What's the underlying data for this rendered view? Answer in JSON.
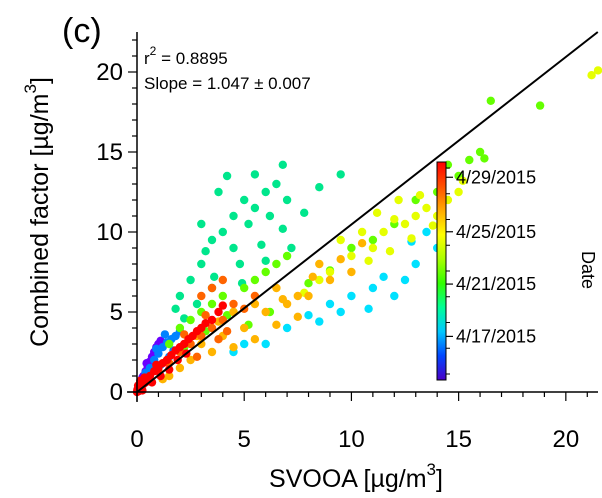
{
  "chart_data": {
    "type": "scatter",
    "panel_label": "(c)",
    "xlabel": "SVOOA [µg/m",
    "xlabel_sup": "3",
    "xlabel_end": "]",
    "ylabel": "Combined factor [µg/m",
    "ylabel_sup": "3",
    "ylabel_end": "]",
    "xlim": [
      0,
      21.5
    ],
    "ylim": [
      0,
      22.5
    ],
    "x_ticks": [
      0,
      5,
      10,
      15,
      20
    ],
    "y_ticks": [
      0,
      5,
      10,
      15,
      20
    ],
    "annotations": {
      "r2_label": "r",
      "r2_sup": "2",
      "r2_value": " = 0.8895",
      "slope_text": "Slope = 1.047 ± 0.007"
    },
    "fit_line": {
      "slope": 1.047,
      "intercept": 0
    },
    "colorbar": {
      "title": "Date",
      "tick_labels": [
        "4/29/2015",
        "4/25/2015",
        "4/21/2015",
        "4/17/2015"
      ],
      "tick_fracs": [
        0.07,
        0.32,
        0.56,
        0.8
      ],
      "colors_bottom_to_top": [
        "#4b00c8",
        "#0046ff",
        "#00c8ff",
        "#00ff96",
        "#32ff00",
        "#aaff00",
        "#ffff00",
        "#ffaa00",
        "#ff5000",
        "#ff0000"
      ]
    },
    "series": [
      {
        "color": "#6a00ff",
        "points": [
          [
            0.1,
            0.3
          ],
          [
            0.2,
            0.6
          ],
          [
            0.3,
            1.0
          ],
          [
            0.4,
            1.3
          ],
          [
            0.5,
            1.6
          ],
          [
            0.6,
            1.9
          ],
          [
            0.7,
            2.2
          ],
          [
            0.8,
            2.5
          ],
          [
            0.9,
            2.8
          ],
          [
            1.0,
            3.0
          ],
          [
            1.1,
            3.2
          ],
          [
            0.3,
            0.5
          ],
          [
            0.5,
            1.0
          ],
          [
            0.7,
            1.4
          ],
          [
            0.15,
            0.2
          ],
          [
            0.25,
            0.9
          ],
          [
            0.45,
            1.8
          ]
        ]
      },
      {
        "color": "#0082ff",
        "points": [
          [
            0.2,
            0.5
          ],
          [
            0.4,
            1.2
          ],
          [
            0.6,
            1.5
          ],
          [
            0.8,
            2.0
          ],
          [
            1.0,
            2.4
          ],
          [
            1.2,
            2.8
          ],
          [
            1.4,
            3.1
          ],
          [
            1.6,
            3.3
          ],
          [
            1.8,
            3.5
          ],
          [
            2.0,
            3.8
          ],
          [
            1.5,
            2.2
          ],
          [
            1.1,
            1.7
          ],
          [
            0.9,
            2.7
          ],
          [
            1.3,
            3.6
          ],
          [
            1.7,
            2.6
          ],
          [
            0.5,
            1.1
          ]
        ]
      },
      {
        "color": "#00e1ff",
        "points": [
          [
            6.0,
            3.0
          ],
          [
            7.0,
            4.0
          ],
          [
            8.0,
            4.8
          ],
          [
            9.0,
            5.5
          ],
          [
            10.0,
            6.0
          ],
          [
            11.0,
            6.5
          ],
          [
            12.0,
            6.0
          ],
          [
            12.5,
            7.0
          ],
          [
            13.0,
            8.0
          ],
          [
            14.0,
            9.0
          ],
          [
            5.0,
            3.0
          ],
          [
            4.5,
            2.5
          ],
          [
            9.5,
            5.0
          ],
          [
            11.5,
            7.2
          ],
          [
            13.5,
            10.0
          ],
          [
            12.8,
            9.4
          ],
          [
            10.8,
            5.2
          ],
          [
            8.5,
            4.4
          ]
        ]
      },
      {
        "color": "#00e68c",
        "points": [
          [
            2.0,
            6.0
          ],
          [
            2.5,
            7.0
          ],
          [
            3.0,
            8.0
          ],
          [
            3.5,
            9.5
          ],
          [
            4.0,
            10.0
          ],
          [
            4.5,
            11.0
          ],
          [
            5.0,
            12.0
          ],
          [
            5.5,
            11.5
          ],
          [
            6.0,
            12.5
          ],
          [
            6.5,
            13.0
          ],
          [
            3.0,
            10.5
          ],
          [
            3.8,
            12.5
          ],
          [
            4.2,
            13.5
          ],
          [
            5.2,
            10.5
          ],
          [
            6.2,
            11.0
          ],
          [
            7.0,
            12.0
          ],
          [
            7.8,
            11.2
          ],
          [
            4.8,
            8.0
          ],
          [
            3.5,
            6.5
          ],
          [
            2.8,
            5.5
          ],
          [
            5.8,
            9.2
          ],
          [
            6.8,
            10.2
          ],
          [
            4.5,
            9.0
          ],
          [
            3.2,
            8.8
          ],
          [
            5.5,
            13.6
          ],
          [
            6.8,
            14.2
          ],
          [
            8.5,
            12.8
          ],
          [
            9.5,
            13.6
          ],
          [
            2.2,
            4.6
          ],
          [
            1.8,
            5.2
          ],
          [
            3.6,
            7.2
          ],
          [
            4.9,
            6.8
          ],
          [
            6.0,
            8.2
          ],
          [
            7.2,
            9.0
          ]
        ]
      },
      {
        "color": "#64ff00",
        "points": [
          [
            1.5,
            3.0
          ],
          [
            2.0,
            4.0
          ],
          [
            2.5,
            4.5
          ],
          [
            3.0,
            5.0
          ],
          [
            3.5,
            5.5
          ],
          [
            4.0,
            6.0
          ],
          [
            4.5,
            5.0
          ],
          [
            5.0,
            6.5
          ],
          [
            5.5,
            7.0
          ],
          [
            6.0,
            7.5
          ],
          [
            6.5,
            8.0
          ],
          [
            7.0,
            8.5
          ],
          [
            2.2,
            2.8
          ],
          [
            3.2,
            3.8
          ],
          [
            4.2,
            4.8
          ],
          [
            5.2,
            4.2
          ],
          [
            6.2,
            5.0
          ],
          [
            15.5,
            14.5
          ],
          [
            16.0,
            15.0
          ],
          [
            16.5,
            18.2
          ],
          [
            18.8,
            17.9
          ],
          [
            12.0,
            10.5
          ],
          [
            13.0,
            12.0
          ],
          [
            14.0,
            12.5
          ],
          [
            15.0,
            13.5
          ],
          [
            11.0,
            9.5
          ],
          [
            10.0,
            9.0
          ],
          [
            14.5,
            14.2
          ],
          [
            16.2,
            14.6
          ],
          [
            8.0,
            6.8
          ],
          [
            9.0,
            7.6
          ]
        ]
      },
      {
        "color": "#e6ff00",
        "points": [
          [
            9.0,
            7.5
          ],
          [
            10.0,
            8.5
          ],
          [
            11.0,
            9.0
          ],
          [
            11.5,
            10.0
          ],
          [
            12.0,
            10.8
          ],
          [
            12.5,
            10.5
          ],
          [
            13.0,
            11.0
          ],
          [
            13.5,
            11.5
          ],
          [
            14.0,
            11.0
          ],
          [
            14.5,
            12.0
          ],
          [
            15.0,
            12.5
          ],
          [
            9.5,
            9.5
          ],
          [
            10.5,
            10.0
          ],
          [
            11.2,
            11.2
          ],
          [
            12.2,
            12.0
          ],
          [
            13.2,
            12.3
          ],
          [
            14.2,
            12.8
          ],
          [
            15.2,
            13.2
          ],
          [
            21.2,
            19.8
          ],
          [
            21.5,
            20.1
          ],
          [
            8.5,
            7.0
          ],
          [
            7.8,
            6.2
          ],
          [
            10.8,
            8.2
          ],
          [
            12.8,
            9.6
          ],
          [
            13.8,
            10.4
          ],
          [
            11.8,
            8.8
          ]
        ]
      },
      {
        "color": "#ffb400",
        "points": [
          [
            3.0,
            3.0
          ],
          [
            4.0,
            3.5
          ],
          [
            5.0,
            4.0
          ],
          [
            6.0,
            5.0
          ],
          [
            7.0,
            5.5
          ],
          [
            8.0,
            6.0
          ],
          [
            9.0,
            7.0
          ],
          [
            10.0,
            7.5
          ],
          [
            4.5,
            5.0
          ],
          [
            5.5,
            5.5
          ],
          [
            6.5,
            6.5
          ],
          [
            7.5,
            6.0
          ],
          [
            8.5,
            8.0
          ],
          [
            2.5,
            2.0
          ],
          [
            3.5,
            2.5
          ],
          [
            4.5,
            2.8
          ],
          [
            5.5,
            3.3
          ],
          [
            6.5,
            4.2
          ],
          [
            7.5,
            4.7
          ],
          [
            2.0,
            1.5
          ],
          [
            1.5,
            1.0
          ],
          [
            9.5,
            8.3
          ],
          [
            8.2,
            7.2
          ],
          [
            6.8,
            5.8
          ],
          [
            3.8,
            4.4
          ],
          [
            2.8,
            3.5
          ],
          [
            1.2,
            0.8
          ],
          [
            10.5,
            9.3
          ]
        ]
      },
      {
        "color": "#ff6400",
        "points": [
          [
            2.0,
            2.5
          ],
          [
            2.5,
            3.0
          ],
          [
            3.0,
            3.5
          ],
          [
            3.5,
            4.0
          ],
          [
            4.0,
            4.5
          ],
          [
            4.5,
            5.5
          ],
          [
            3.0,
            6.0
          ],
          [
            3.5,
            6.5
          ],
          [
            4.0,
            7.0
          ],
          [
            1.5,
            1.8
          ],
          [
            1.0,
            1.3
          ],
          [
            2.8,
            2.2
          ],
          [
            3.8,
            3.3
          ],
          [
            4.2,
            3.8
          ],
          [
            3.2,
            4.8
          ],
          [
            2.2,
            3.6
          ],
          [
            5.0,
            5.2
          ],
          [
            5.5,
            6.0
          ]
        ]
      },
      {
        "color": "#ff0000",
        "points": [
          [
            0.0,
            0.0
          ],
          [
            0.1,
            0.2
          ],
          [
            0.2,
            0.3
          ],
          [
            0.3,
            0.5
          ],
          [
            0.4,
            0.6
          ],
          [
            0.5,
            0.8
          ],
          [
            0.6,
            1.0
          ],
          [
            0.8,
            1.3
          ],
          [
            1.0,
            1.5
          ],
          [
            1.2,
            1.8
          ],
          [
            1.4,
            2.0
          ],
          [
            1.6,
            2.3
          ],
          [
            1.8,
            2.6
          ],
          [
            2.0,
            2.8
          ],
          [
            2.2,
            3.0
          ],
          [
            2.4,
            3.3
          ],
          [
            2.6,
            3.5
          ],
          [
            2.8,
            3.8
          ],
          [
            3.0,
            4.0
          ],
          [
            0.05,
            0.4
          ],
          [
            0.15,
            0.7
          ],
          [
            0.25,
            0.1
          ],
          [
            0.35,
            0.9
          ],
          [
            0.7,
            0.6
          ],
          [
            1.1,
            1.0
          ],
          [
            1.5,
            1.4
          ],
          [
            0.9,
            1.7
          ],
          [
            1.9,
            2.0
          ],
          [
            2.3,
            2.4
          ],
          [
            3.2,
            4.3
          ],
          [
            3.5,
            4.5
          ],
          [
            3.8,
            5.0
          ],
          [
            4.0,
            5.4
          ],
          [
            0.02,
            0.15
          ],
          [
            0.08,
            0.05
          ]
        ]
      }
    ]
  }
}
